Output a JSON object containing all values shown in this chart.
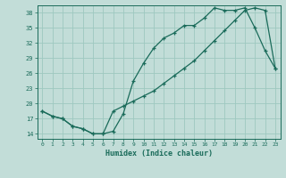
{
  "xlabel": "Humidex (Indice chaleur)",
  "bg_color": "#c2ddd8",
  "grid_color": "#9ec8c0",
  "line_color": "#1a6b5a",
  "xlim": [
    -0.5,
    23.5
  ],
  "ylim": [
    13.0,
    39.5
  ],
  "yticks": [
    14,
    17,
    20,
    23,
    26,
    29,
    32,
    35,
    38
  ],
  "xticks": [
    0,
    1,
    2,
    3,
    4,
    5,
    6,
    7,
    8,
    9,
    10,
    11,
    12,
    13,
    14,
    15,
    16,
    17,
    18,
    19,
    20,
    21,
    22,
    23
  ],
  "line1_x": [
    0,
    1,
    2,
    3,
    4,
    5,
    6,
    7,
    8,
    9,
    10,
    11,
    12,
    13,
    14,
    15,
    16,
    17,
    18,
    19,
    20,
    21,
    22,
    23
  ],
  "line1_y": [
    18.5,
    17.5,
    17.0,
    15.5,
    15.0,
    14.0,
    14.0,
    14.5,
    18.0,
    24.5,
    28.0,
    31.0,
    33.0,
    34.0,
    35.5,
    35.5,
    37.0,
    39.0,
    38.5,
    38.5,
    39.0,
    35.0,
    30.5,
    27.0
  ],
  "line2_x": [
    0,
    1,
    2,
    3,
    4,
    5,
    6,
    7,
    8,
    9,
    10,
    11,
    12,
    13,
    14,
    15,
    16,
    17,
    18,
    19,
    20,
    21,
    22,
    23
  ],
  "line2_y": [
    18.5,
    17.5,
    17.0,
    15.5,
    15.0,
    14.0,
    14.0,
    18.5,
    19.5,
    20.5,
    21.5,
    22.5,
    24.0,
    25.5,
    27.0,
    28.5,
    30.5,
    32.5,
    34.5,
    36.5,
    38.5,
    39.0,
    38.5,
    27.0
  ]
}
